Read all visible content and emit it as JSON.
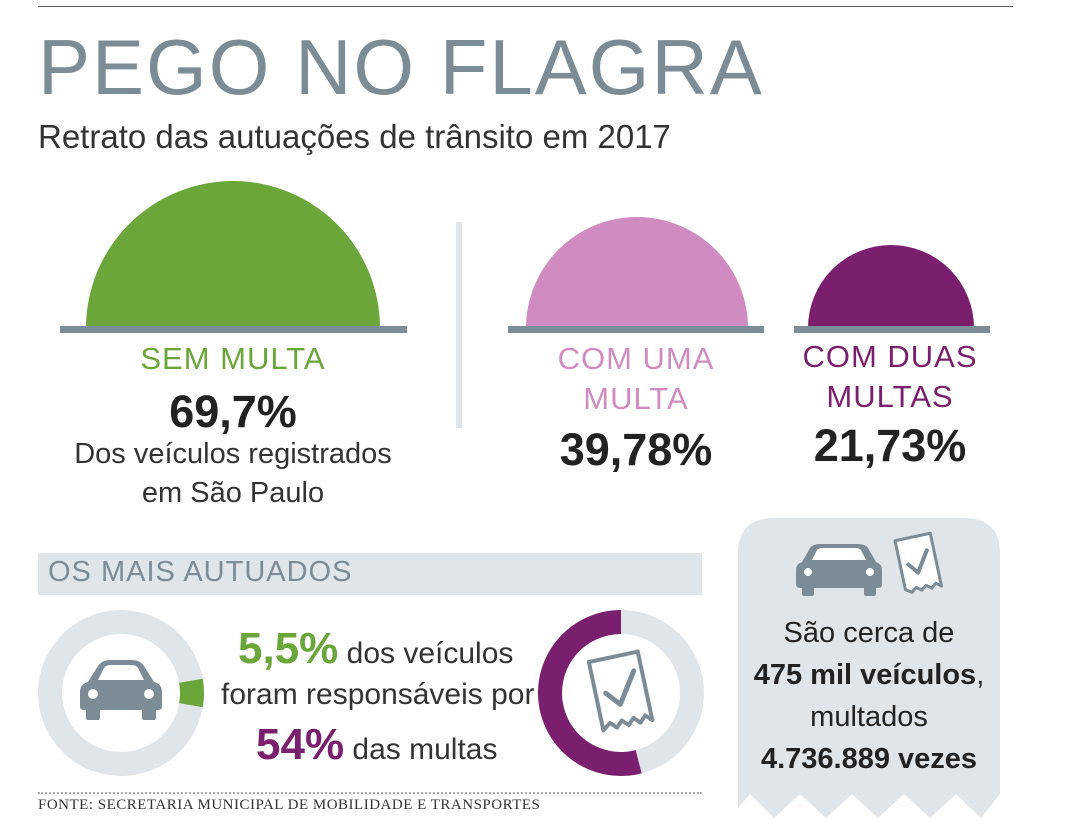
{
  "title": "PEGO NO FLAGRA",
  "subtitle": "Retrato das autuações de trânsito em 2017",
  "chart_data": [
    {
      "type": "semicircle",
      "categories": [
        "SEM MULTA"
      ],
      "values": [
        69.7
      ],
      "value_labels": [
        "69,7%"
      ],
      "note": "Dos veículos registrados em São Paulo",
      "colors": [
        "#6aa63a"
      ]
    },
    {
      "type": "semicircle",
      "categories": [
        "COM UMA MULTA",
        "COM DUAS MULTAS"
      ],
      "values": [
        39.78,
        21.73
      ],
      "value_labels": [
        "39,78%",
        "21,73%"
      ],
      "colors": [
        "#d08cc0",
        "#7a1f6e"
      ]
    },
    {
      "type": "donut",
      "categories": [
        "dos veículos"
      ],
      "values": [
        5.5
      ],
      "value_labels": [
        "5,5%"
      ],
      "colors": [
        "#6aa63a",
        "#dfe5e8"
      ]
    },
    {
      "type": "donut",
      "categories": [
        "das multas"
      ],
      "values": [
        54
      ],
      "value_labels": [
        "54%"
      ],
      "colors": [
        "#7a1f6e",
        "#dfe5e8"
      ]
    }
  ],
  "labels": {
    "sem_multa": "SEM MULTA",
    "sem_multa_pct": "69,7%",
    "sem_multa_desc1": "Dos veículos registrados",
    "sem_multa_desc2": "em São Paulo",
    "uma_multa_1": "COM UMA",
    "uma_multa_2": "MULTA",
    "uma_multa_pct": "39,78%",
    "duas_multas_1": "COM DUAS",
    "duas_multas_2": "MULTAS",
    "duas_multas_pct": "21,73%"
  },
  "section": {
    "label": "OS MAIS AUTUADOS",
    "line1_value": "5,5%",
    "line1_text": " dos veículos",
    "line2_text": "foram responsáveis por",
    "line3_value": "54%",
    "line3_text": " das multas"
  },
  "panel": {
    "line1": "São cerca de",
    "line2_bold": "475 mil veículos",
    "line2_rest": ",",
    "line3": "multados",
    "line4": "4.736.889 vezes"
  },
  "source": "FONTE: SECRETARIA MUNICIPAL DE MOBILIDADE E TRANSPORTES",
  "colors": {
    "green": "#6aa63a",
    "pink": "#d08cc0",
    "purple": "#7a1f6e",
    "gray": "#7b8c96",
    "light_gray": "#dfe5e8"
  }
}
